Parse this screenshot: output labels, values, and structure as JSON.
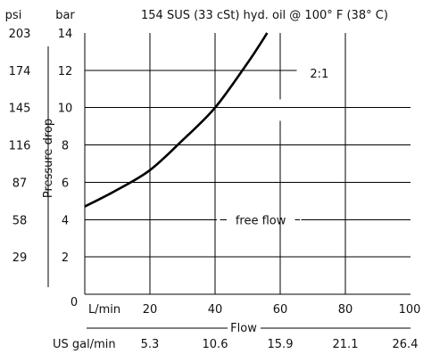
{
  "chart_data": {
    "type": "line",
    "title": "154 SUS (33 cSt) hyd. oil @ 100° F (38° C)",
    "xlabel": "Flow",
    "ylabel": "Pressure drop",
    "x_unit": "L/min",
    "y_unit": "bar",
    "secondary_x_unit": "US gal/min",
    "secondary_y_unit": "psi",
    "xlim": [
      0,
      100
    ],
    "ylim": [
      0,
      14
    ],
    "x_ticks": [
      "20",
      "40",
      "60",
      "80",
      "100"
    ],
    "x_zero_label": "0",
    "y_ticks": [
      "2",
      "4",
      "6",
      "8",
      "10",
      "12",
      "14"
    ],
    "secondary_x_ticks": [
      "5.3",
      "10.6",
      "15.9",
      "21.1",
      "26.4"
    ],
    "secondary_y_ticks": [
      "29",
      "58",
      "87",
      "116",
      "145",
      "174",
      "203"
    ],
    "grid": true,
    "series": [
      {
        "name": "2:1",
        "x": [
          0,
          10,
          20,
          30,
          40,
          50,
          56
        ],
        "y": [
          4.7,
          5.6,
          6.65,
          8.25,
          10.0,
          12.4,
          14.0
        ]
      }
    ],
    "annotations": [
      {
        "text": "2:1"
      },
      {
        "text": "free flow"
      }
    ]
  }
}
